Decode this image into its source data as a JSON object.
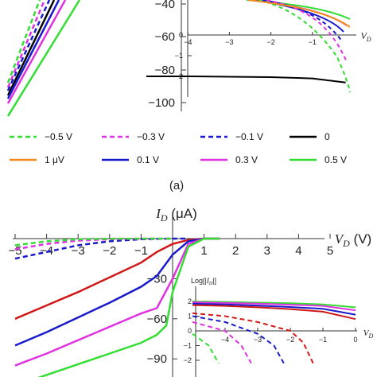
{
  "caption": "(a)",
  "legend": [
    {
      "label": "−0.5 V",
      "color": "#33dd33",
      "dash": true
    },
    {
      "label": "−0.3 V",
      "color": "#e033e0",
      "dash": true
    },
    {
      "label": "−0.1 V",
      "color": "#1a1acc",
      "dash": true
    },
    {
      "label": "0",
      "color": "#000000",
      "dash": false
    },
    {
      "label": "1 μV",
      "color": "#f28c1e",
      "dash": false
    },
    {
      "label": "0.1 V",
      "color": "#1a1acc",
      "dash": false
    },
    {
      "label": "0.3 V",
      "color": "#e033e0",
      "dash": false
    },
    {
      "label": "0.5 V",
      "color": "#33dd33",
      "dash": false
    }
  ],
  "chart_data": [
    {
      "type": "line",
      "panel": "top-main",
      "ytick_labels": [
        "−40",
        "−60",
        "−80",
        "−100"
      ]
    },
    {
      "type": "line",
      "panel": "top-inset",
      "xlabel": "V_D",
      "xtick_labels": [
        "−4",
        "−3",
        "−2",
        "−1"
      ],
      "ytick_labels": [
        "0",
        "−1",
        "−2"
      ],
      "series": [
        {
          "color": "#000000",
          "dash": false,
          "x": [
            -5,
            -4,
            -3,
            -2,
            -1,
            -0.2
          ],
          "y": [
            -2.0,
            -2.0,
            -2.02,
            -2.04,
            -2.1,
            -2.3
          ]
        }
      ]
    },
    {
      "type": "line",
      "panel": "bottom-main",
      "ylabel": "I_D (μA)",
      "xlabel": "V_D (V)",
      "xtick_labels": [
        "−5",
        "−4",
        "−3",
        "−2",
        "−1",
        "1",
        "2",
        "3",
        "4",
        "5"
      ],
      "ytick_labels": [
        "−30",
        "−60",
        "−90"
      ],
      "xlim": [
        -5,
        5
      ],
      "series": [
        {
          "color": "#d01818",
          "dash": false,
          "x": [
            -5,
            -4,
            -3,
            -2,
            -1,
            -0.5,
            0,
            0.5,
            1,
            1.5
          ],
          "y": [
            -60,
            -50,
            -40,
            -29,
            -18,
            -10,
            -4,
            -1,
            0,
            0
          ]
        },
        {
          "color": "#1a1acc",
          "dash": false,
          "x": [
            -5,
            -4,
            -3,
            -2,
            -1,
            -0.5,
            0,
            0.5,
            1,
            1.5
          ],
          "y": [
            -80,
            -70,
            -59,
            -48,
            -36,
            -28,
            -12,
            -2,
            0,
            0
          ]
        },
        {
          "color": "#e033e0",
          "dash": false,
          "x": [
            -5,
            -4,
            -3,
            -2,
            -1,
            -0.5,
            0,
            0.5,
            1,
            1.5
          ],
          "y": [
            -95,
            -86,
            -76,
            -66,
            -56,
            -52,
            -30,
            -4,
            0,
            0
          ]
        },
        {
          "color": "#33dd33",
          "dash": false,
          "x": [
            -5,
            -4,
            -3,
            -2,
            -1,
            -0.5,
            -0.2,
            0,
            0.5,
            1,
            1.5
          ],
          "y": [
            -110,
            -102,
            -94,
            -86,
            -78,
            -72,
            -65,
            -40,
            -6,
            0,
            0
          ]
        },
        {
          "color": "#1a1acc",
          "dash": true,
          "x": [
            -5,
            -4,
            -3,
            -2,
            -1,
            0,
            0.5
          ],
          "y": [
            -15,
            -10,
            -5,
            -2,
            -0.5,
            0,
            0
          ]
        },
        {
          "color": "#e033e0",
          "dash": true,
          "x": [
            -5,
            -4,
            -3,
            -2,
            -1,
            0
          ],
          "y": [
            -8,
            -4,
            -1.5,
            -0.5,
            -0.1,
            0
          ]
        },
        {
          "color": "#33dd33",
          "dash": true,
          "x": [
            -5,
            -4,
            -3,
            -2,
            -1,
            0
          ],
          "y": [
            -5,
            -2,
            -0.5,
            -0.1,
            0,
            0
          ]
        }
      ]
    },
    {
      "type": "line",
      "panel": "bottom-inset",
      "ylabel": "Log[|I_D|]",
      "xlabel": "V_D",
      "xtick_labels": [
        "−4",
        "−3",
        "−2",
        "−1",
        "0"
      ],
      "ytick_labels": [
        "2",
        "1",
        "0",
        "−1",
        "−2"
      ],
      "series": [
        {
          "color": "#33dd33",
          "dash": false,
          "x": [
            -5,
            -4,
            -3,
            -2,
            -1,
            0
          ],
          "y": [
            2.0,
            1.97,
            1.92,
            1.88,
            1.8,
            1.6
          ]
        },
        {
          "color": "#e033e0",
          "dash": false,
          "x": [
            -5,
            -4,
            -3,
            -2,
            -1,
            0
          ],
          "y": [
            1.95,
            1.9,
            1.85,
            1.78,
            1.7,
            1.4
          ]
        },
        {
          "color": "#1a1acc",
          "dash": false,
          "x": [
            -5,
            -4,
            -3,
            -2,
            -1,
            0
          ],
          "y": [
            1.85,
            1.8,
            1.72,
            1.62,
            1.5,
            1.1
          ]
        },
        {
          "color": "#d01818",
          "dash": false,
          "x": [
            -5,
            -4,
            -3,
            -2,
            -1,
            0
          ],
          "y": [
            1.75,
            1.7,
            1.6,
            1.48,
            1.3,
            0.8
          ]
        },
        {
          "color": "#d01818",
          "dash": true,
          "x": [
            -5,
            -4,
            -3,
            -2,
            -1.6,
            -1.3
          ],
          "y": [
            1.2,
            1.0,
            0.6,
            0.0,
            -0.8,
            -2.2
          ]
        },
        {
          "color": "#1a1acc",
          "dash": true,
          "x": [
            -5,
            -4,
            -3,
            -2.5,
            -2.2
          ],
          "y": [
            1.0,
            0.6,
            -0.2,
            -1.0,
            -2.2
          ]
        },
        {
          "color": "#e033e0",
          "dash": true,
          "x": [
            -5,
            -4,
            -3.5,
            -3.2
          ],
          "y": [
            0.6,
            0.0,
            -1.0,
            -2.2
          ]
        },
        {
          "color": "#33dd33",
          "dash": true,
          "x": [
            -5,
            -4.5,
            -4.2
          ],
          "y": [
            -0.2,
            -1.0,
            -2.2
          ]
        }
      ]
    }
  ]
}
